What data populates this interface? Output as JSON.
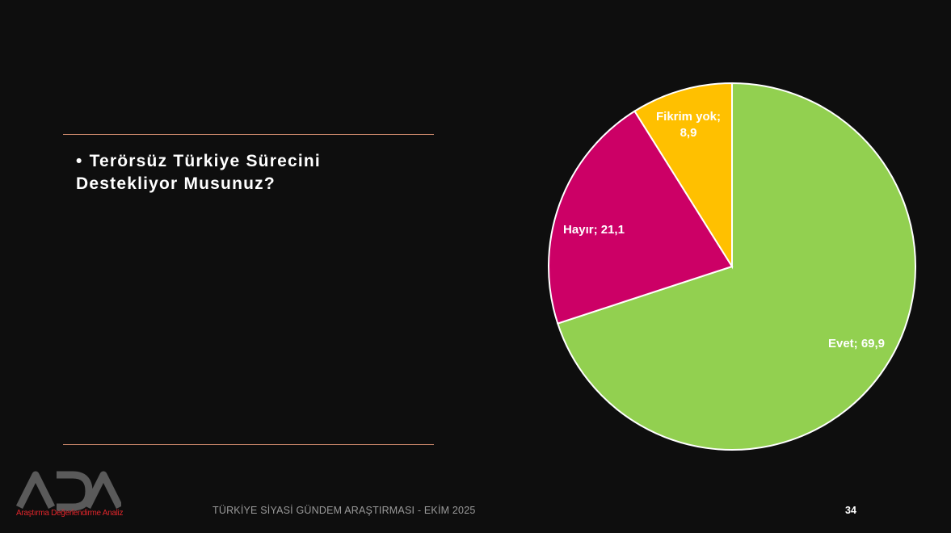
{
  "slide": {
    "question": "Terörsüz Türkiye Sürecini Destekliyor Musunuz?",
    "bullet": "•"
  },
  "footer": {
    "title": "TÜRKİYE SİYASİ GÜNDEM ARAŞTIRMASI - EKİM 2025",
    "page_number": "34"
  },
  "logo": {
    "text": "ADA",
    "subtitle": "Araştırma Değerlendirme Analiz"
  },
  "colors": {
    "background": "#0e0e0e",
    "evet": "#92d050",
    "hayir": "#cc0066",
    "fikrim_yok": "#ffc000",
    "rule": "#c9876a"
  },
  "chart_data": {
    "type": "pie",
    "slices": [
      {
        "name": "Evet",
        "value": 69.9,
        "label": "Evet; 69,9",
        "color": "#92d050"
      },
      {
        "name": "Hayır",
        "value": 21.1,
        "label": "Hayır; 21,1",
        "color": "#cc0066"
      },
      {
        "name": "Fikrim yok",
        "value": 8.9,
        "label_lines": [
          "Fikrim yok;",
          "8,9"
        ],
        "color": "#ffc000"
      }
    ],
    "start": "12 o'clock, clockwise",
    "legend": "none"
  }
}
